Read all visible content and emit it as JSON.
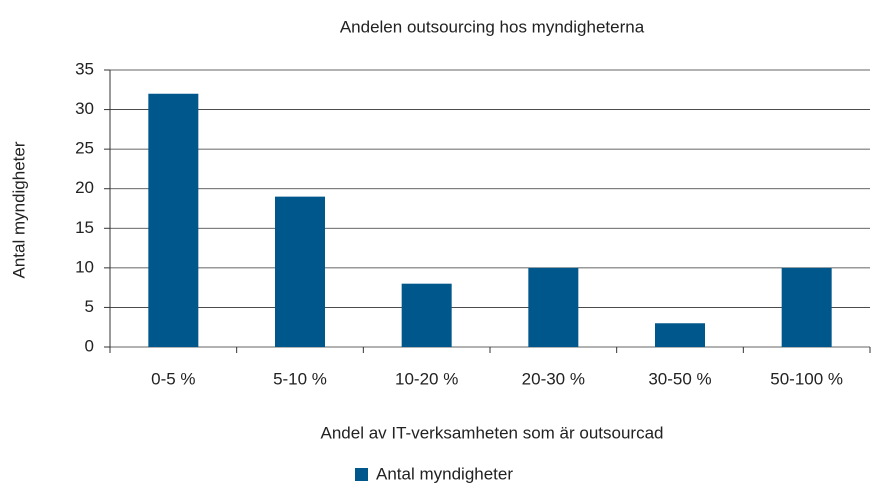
{
  "chart_data": {
    "type": "bar",
    "title": "Andelen outsourcing hos myndigheterna",
    "x_label": "Andel av IT-verksamheten som är outsourcad",
    "y_label": "Antal myndigheter",
    "categories": [
      "0-5 %",
      "5-10 %",
      "10-20 %",
      "20-30 %",
      "30-50 %",
      "50-100 %"
    ],
    "series": [
      {
        "name": "Antal myndigheter",
        "color": "#00578b",
        "values": [
          32,
          19,
          8,
          10,
          3,
          10
        ]
      }
    ],
    "ylim": [
      0,
      35
    ],
    "yticks": [
      0,
      5,
      10,
      15,
      20,
      25,
      30,
      35
    ],
    "grid": true,
    "legend": "bottom"
  }
}
